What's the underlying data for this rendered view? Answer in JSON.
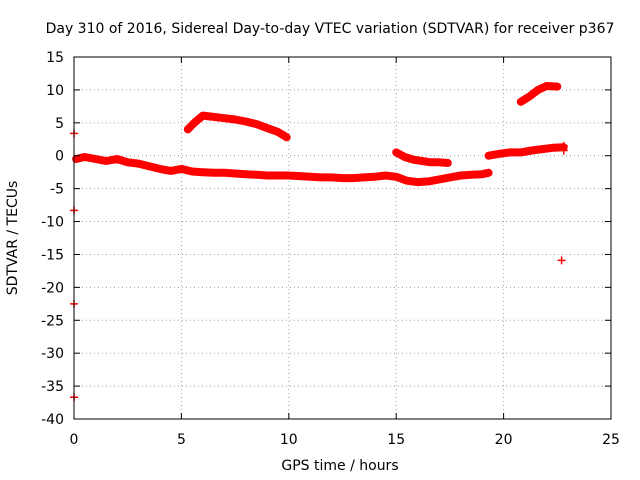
{
  "chart_data": {
    "type": "scatter",
    "title": "Day 310 of 2016, Sidereal Day-to-day VTEC variation (SDTVAR) for receiver p367",
    "xlabel": "GPS time / hours",
    "ylabel": "SDTVAR / TECUs",
    "xlim": [
      0,
      25
    ],
    "ylim": [
      -40,
      15
    ],
    "xticks": [
      0,
      5,
      10,
      15,
      20,
      25
    ],
    "yticks": [
      15,
      10,
      5,
      0,
      -5,
      -10,
      -15,
      -20,
      -25,
      -30,
      -35,
      -40
    ],
    "grid": true,
    "marker": "+",
    "series": [
      {
        "name": "SDTVAR",
        "color": "#ff0000",
        "segments": [
          {
            "x": [
              0.1,
              0.5,
              1.0,
              1.5,
              2.0,
              2.5,
              3.0,
              3.5,
              4.0,
              4.5,
              5.0,
              5.5,
              6.0,
              6.5,
              7.0,
              7.5,
              8.0,
              8.5,
              9.0,
              9.5,
              10.0,
              10.5,
              11.0,
              11.5,
              12.0,
              12.5,
              13.0,
              13.5,
              14.0,
              14.5,
              15.0,
              15.5,
              16.0,
              16.5,
              17.0,
              17.5,
              18.0,
              18.5,
              19.0,
              19.3
            ],
            "y": [
              -0.5,
              -0.2,
              -0.5,
              -0.8,
              -0.5,
              -1.0,
              -1.2,
              -1.6,
              -2.0,
              -2.3,
              -2.0,
              -2.4,
              -2.5,
              -2.6,
              -2.6,
              -2.7,
              -2.8,
              -2.9,
              -3.0,
              -3.0,
              -3.0,
              -3.1,
              -3.2,
              -3.3,
              -3.3,
              -3.4,
              -3.4,
              -3.3,
              -3.2,
              -3.0,
              -3.2,
              -3.8,
              -4.0,
              -3.9,
              -3.6,
              -3.3,
              -3.0,
              -2.9,
              -2.8,
              -2.6
            ]
          },
          {
            "x": [
              5.3,
              5.6,
              6.0,
              6.5,
              7.0,
              7.5,
              8.0,
              8.5,
              9.0,
              9.5,
              9.9
            ],
            "y": [
              4.0,
              5.0,
              6.1,
              5.9,
              5.7,
              5.5,
              5.2,
              4.8,
              4.2,
              3.6,
              2.8
            ]
          },
          {
            "x": [
              15.0,
              15.4,
              15.8,
              16.2,
              16.6,
              17.0,
              17.4
            ],
            "y": [
              0.5,
              -0.2,
              -0.6,
              -0.8,
              -1.0,
              -1.0,
              -1.1
            ]
          },
          {
            "x": [
              19.3,
              19.8,
              20.3,
              20.8,
              21.3,
              21.8,
              22.3,
              22.8
            ],
            "y": [
              0.0,
              0.3,
              0.5,
              0.5,
              0.8,
              1.0,
              1.2,
              1.3
            ]
          },
          {
            "x": [
              20.8,
              21.2,
              21.6,
              22.0,
              22.5
            ],
            "y": [
              8.2,
              9.0,
              10.0,
              10.6,
              10.5
            ]
          }
        ],
        "points": [
          {
            "x": 0.0,
            "y": 3.4
          },
          {
            "x": 0.0,
            "y": -8.3
          },
          {
            "x": 0.0,
            "y": -22.5
          },
          {
            "x": 0.0,
            "y": -36.7
          },
          {
            "x": 22.7,
            "y": -15.9
          },
          {
            "x": 22.8,
            "y": 1.5
          },
          {
            "x": 22.8,
            "y": 0.8
          }
        ]
      }
    ]
  }
}
